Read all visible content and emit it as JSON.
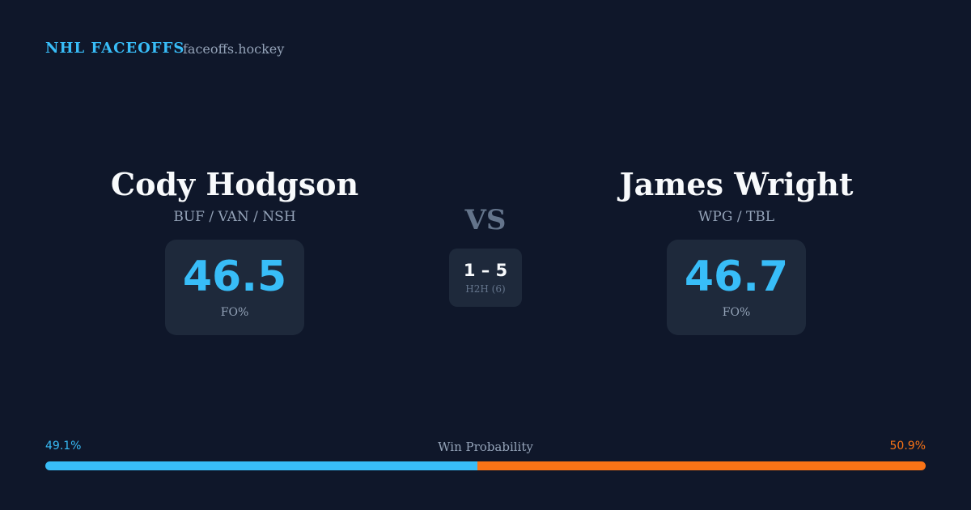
{
  "header": {
    "brand": "NHL FACEOFFS",
    "site": "faceoffs.hockey"
  },
  "players": [
    {
      "name": "Cody Hodgson",
      "teams": "BUF / VAN / NSH",
      "fo_pct": 46.5,
      "fo_label": "FO%"
    },
    {
      "name": "James Wright",
      "teams": "WPG / TBL",
      "fo_pct": 46.7,
      "fo_label": "FO%"
    }
  ],
  "vs": "VS",
  "h2h": {
    "score": "1 – 5",
    "label": "H2H (6)"
  },
  "win_probability": {
    "label": "Win Probability",
    "left": {
      "value": 49.1,
      "label": "49.1%",
      "color": "#38bdf8"
    },
    "right": {
      "value": 50.9,
      "label": "50.9%",
      "color": "#f97316"
    }
  }
}
